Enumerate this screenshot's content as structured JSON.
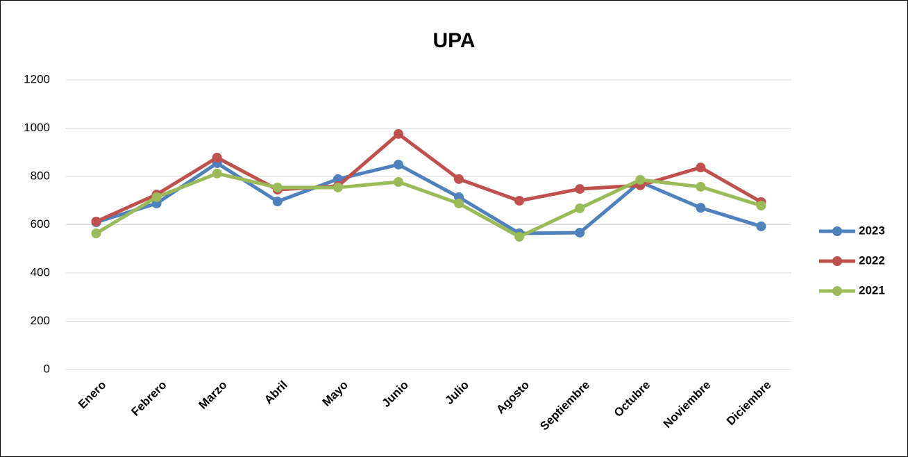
{
  "chart_data": {
    "type": "line",
    "title": "UPA",
    "categories": [
      "Enero",
      "Febrero",
      "Marzo",
      "Abril",
      "Mayo",
      "Junio",
      "Julio",
      "Agosto",
      "Septiembre",
      "Octubre",
      "Noviembre",
      "Diciembre"
    ],
    "series": [
      {
        "name": "2023",
        "color": "#4f81bd",
        "values": [
          610,
          688,
          855,
          696,
          789,
          849,
          714,
          564,
          567,
          777,
          670,
          593
        ]
      },
      {
        "name": "2022",
        "color": "#c0504d",
        "values": [
          613,
          725,
          878,
          745,
          760,
          976,
          789,
          699,
          748,
          763,
          837,
          694
        ]
      },
      {
        "name": "2021",
        "color": "#9bbb59",
        "values": [
          564,
          714,
          812,
          754,
          754,
          777,
          688,
          550,
          668,
          786,
          757,
          679
        ]
      }
    ],
    "ylim": [
      0,
      1200
    ],
    "yticks": [
      0,
      200,
      400,
      600,
      800,
      1000,
      1200
    ],
    "grid": true,
    "legend": "right"
  }
}
